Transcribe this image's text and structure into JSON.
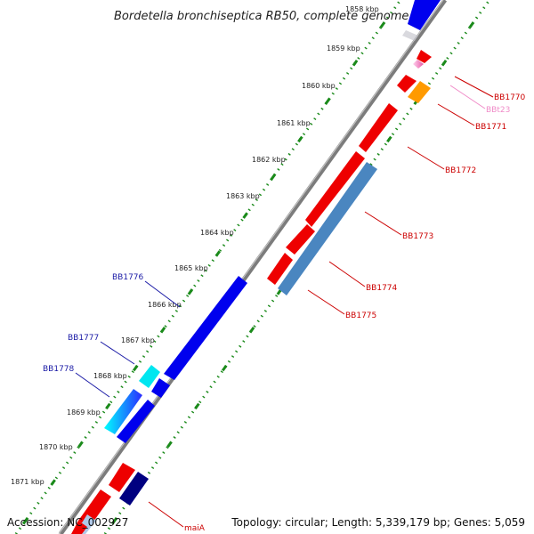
{
  "header": {
    "title": "Bordetella bronchiseptica RB50, complete genome"
  },
  "footer": {
    "accession": "Accession: NC_002927",
    "topology": "Topology: circular; Length: 5,339,179 bp; Genes: 5,059"
  },
  "colors": {
    "backbone": "#8a8a8a",
    "tick": "#1a8a1a",
    "forward_label": "#1a1aa6",
    "reverse_label": "#cc0000",
    "rna_label": "#f08cc8"
  },
  "kbp_marks": [
    "1858 kbp",
    "1859 kbp",
    "1860 kbp",
    "1861 kbp",
    "1862 kbp",
    "1863 kbp",
    "1864 kbp",
    "1865 kbp",
    "1866 kbp",
    "1867 kbp",
    "1868 kbp",
    "1869 kbp",
    "1870 kbp",
    "1871 kbp"
  ],
  "gene_labels": [
    {
      "id": "BB1770",
      "text": "BB1770",
      "kind": "reverse"
    },
    {
      "id": "BBt23",
      "text": "BBt23",
      "kind": "rna"
    },
    {
      "id": "BB1771",
      "text": "BB1771",
      "kind": "reverse"
    },
    {
      "id": "BB1772",
      "text": "BB1772",
      "kind": "reverse"
    },
    {
      "id": "BB1773",
      "text": "BB1773",
      "kind": "reverse"
    },
    {
      "id": "BB1774",
      "text": "BB1774",
      "kind": "reverse"
    },
    {
      "id": "BB1775",
      "text": "BB1775",
      "kind": "reverse"
    },
    {
      "id": "BB1776",
      "text": "BB1776",
      "kind": "forward"
    },
    {
      "id": "BB1777",
      "text": "BB1777",
      "kind": "forward"
    },
    {
      "id": "BB1778",
      "text": "BB1778",
      "kind": "forward"
    },
    {
      "id": "maiA",
      "text": "maiA",
      "kind": "reverse"
    }
  ]
}
